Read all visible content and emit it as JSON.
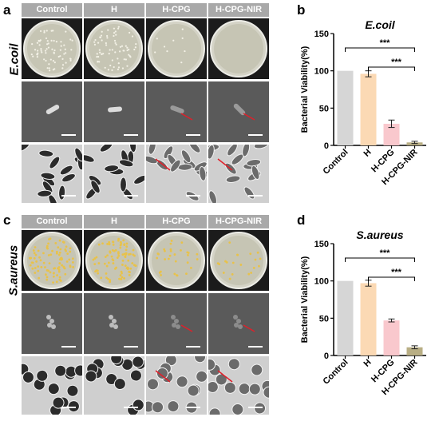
{
  "panels": {
    "a": {
      "letter": "a",
      "organism": "E.coil",
      "headers": [
        "Control",
        "H",
        "H-CPG",
        "H-CPG-NIR"
      ]
    },
    "c": {
      "letter": "c",
      "organism": "S.aureus",
      "headers": [
        "Control",
        "H",
        "H-CPG",
        "H-CPG-NIR"
      ]
    },
    "b": {
      "letter": "b"
    },
    "d": {
      "letter": "d"
    }
  },
  "colors": {
    "header_bg": "#a9a9a9",
    "arrow": "#e0202a",
    "colony_ecoli": "#f3f1e6",
    "colony_saureus": "#e8c24a",
    "bar_control": "#d6d6d6",
    "bar_h": "#fbd9b4",
    "bar_hcpg": "#f9c8cd",
    "bar_hcpgnir": "#b8ae84"
  },
  "chart_data": [
    {
      "type": "bar",
      "title": "E.coil",
      "xlabel": "",
      "ylabel": "Bacterial Viability(%)",
      "ylim": [
        0,
        150
      ],
      "yticks": [
        "0",
        "50",
        "100",
        "150"
      ],
      "categories": [
        "Control",
        "H",
        "H-CPG",
        "H-CPG-NIR"
      ],
      "values": [
        100,
        96,
        29,
        4
      ],
      "errors": [
        0,
        4,
        5,
        1.5
      ],
      "colors": [
        "#d6d6d6",
        "#fbd9b4",
        "#f9c8cd",
        "#b8ae84"
      ],
      "significance": [
        {
          "from": 0,
          "to": 3,
          "label": "***"
        },
        {
          "from": 1,
          "to": 3,
          "label": "***"
        }
      ]
    },
    {
      "type": "bar",
      "title": "S.aureus",
      "xlabel": "",
      "ylabel": "Bacterial Viability(%)",
      "ylim": [
        0,
        150
      ],
      "yticks": [
        "0",
        "50",
        "100",
        "150"
      ],
      "categories": [
        "Control",
        "H",
        "H-CPG",
        "H-CPG-NIR"
      ],
      "values": [
        100,
        97,
        47,
        11
      ],
      "errors": [
        0,
        4,
        2,
        2
      ],
      "colors": [
        "#d6d6d6",
        "#fbd9b4",
        "#f9c8cd",
        "#b8ae84"
      ],
      "significance": [
        {
          "from": 0,
          "to": 3,
          "label": "***"
        },
        {
          "from": 1,
          "to": 3,
          "label": "***"
        }
      ]
    }
  ]
}
